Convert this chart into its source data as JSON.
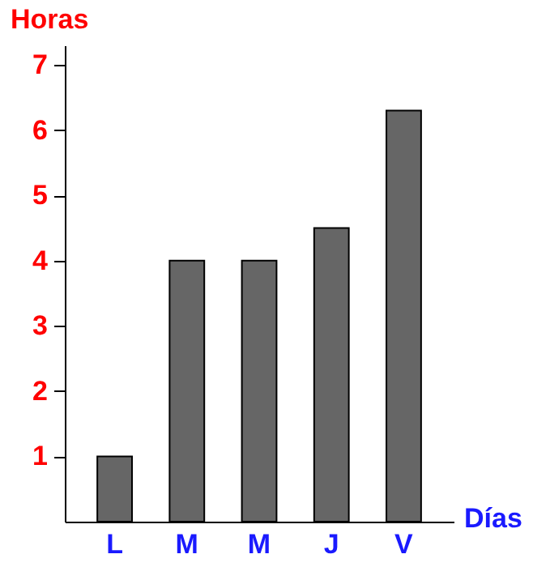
{
  "chart_data": {
    "type": "bar",
    "xlabel": "Días",
    "ylabel": "Horas",
    "categories": [
      "L",
      "M",
      "M",
      "J",
      "V"
    ],
    "values": [
      1,
      4,
      4,
      4.5,
      6.3
    ],
    "color": "#666666",
    "ylim": [
      0,
      7.3
    ],
    "yticks": [
      1,
      2,
      3,
      4,
      5,
      6,
      7
    ],
    "grid": false
  }
}
